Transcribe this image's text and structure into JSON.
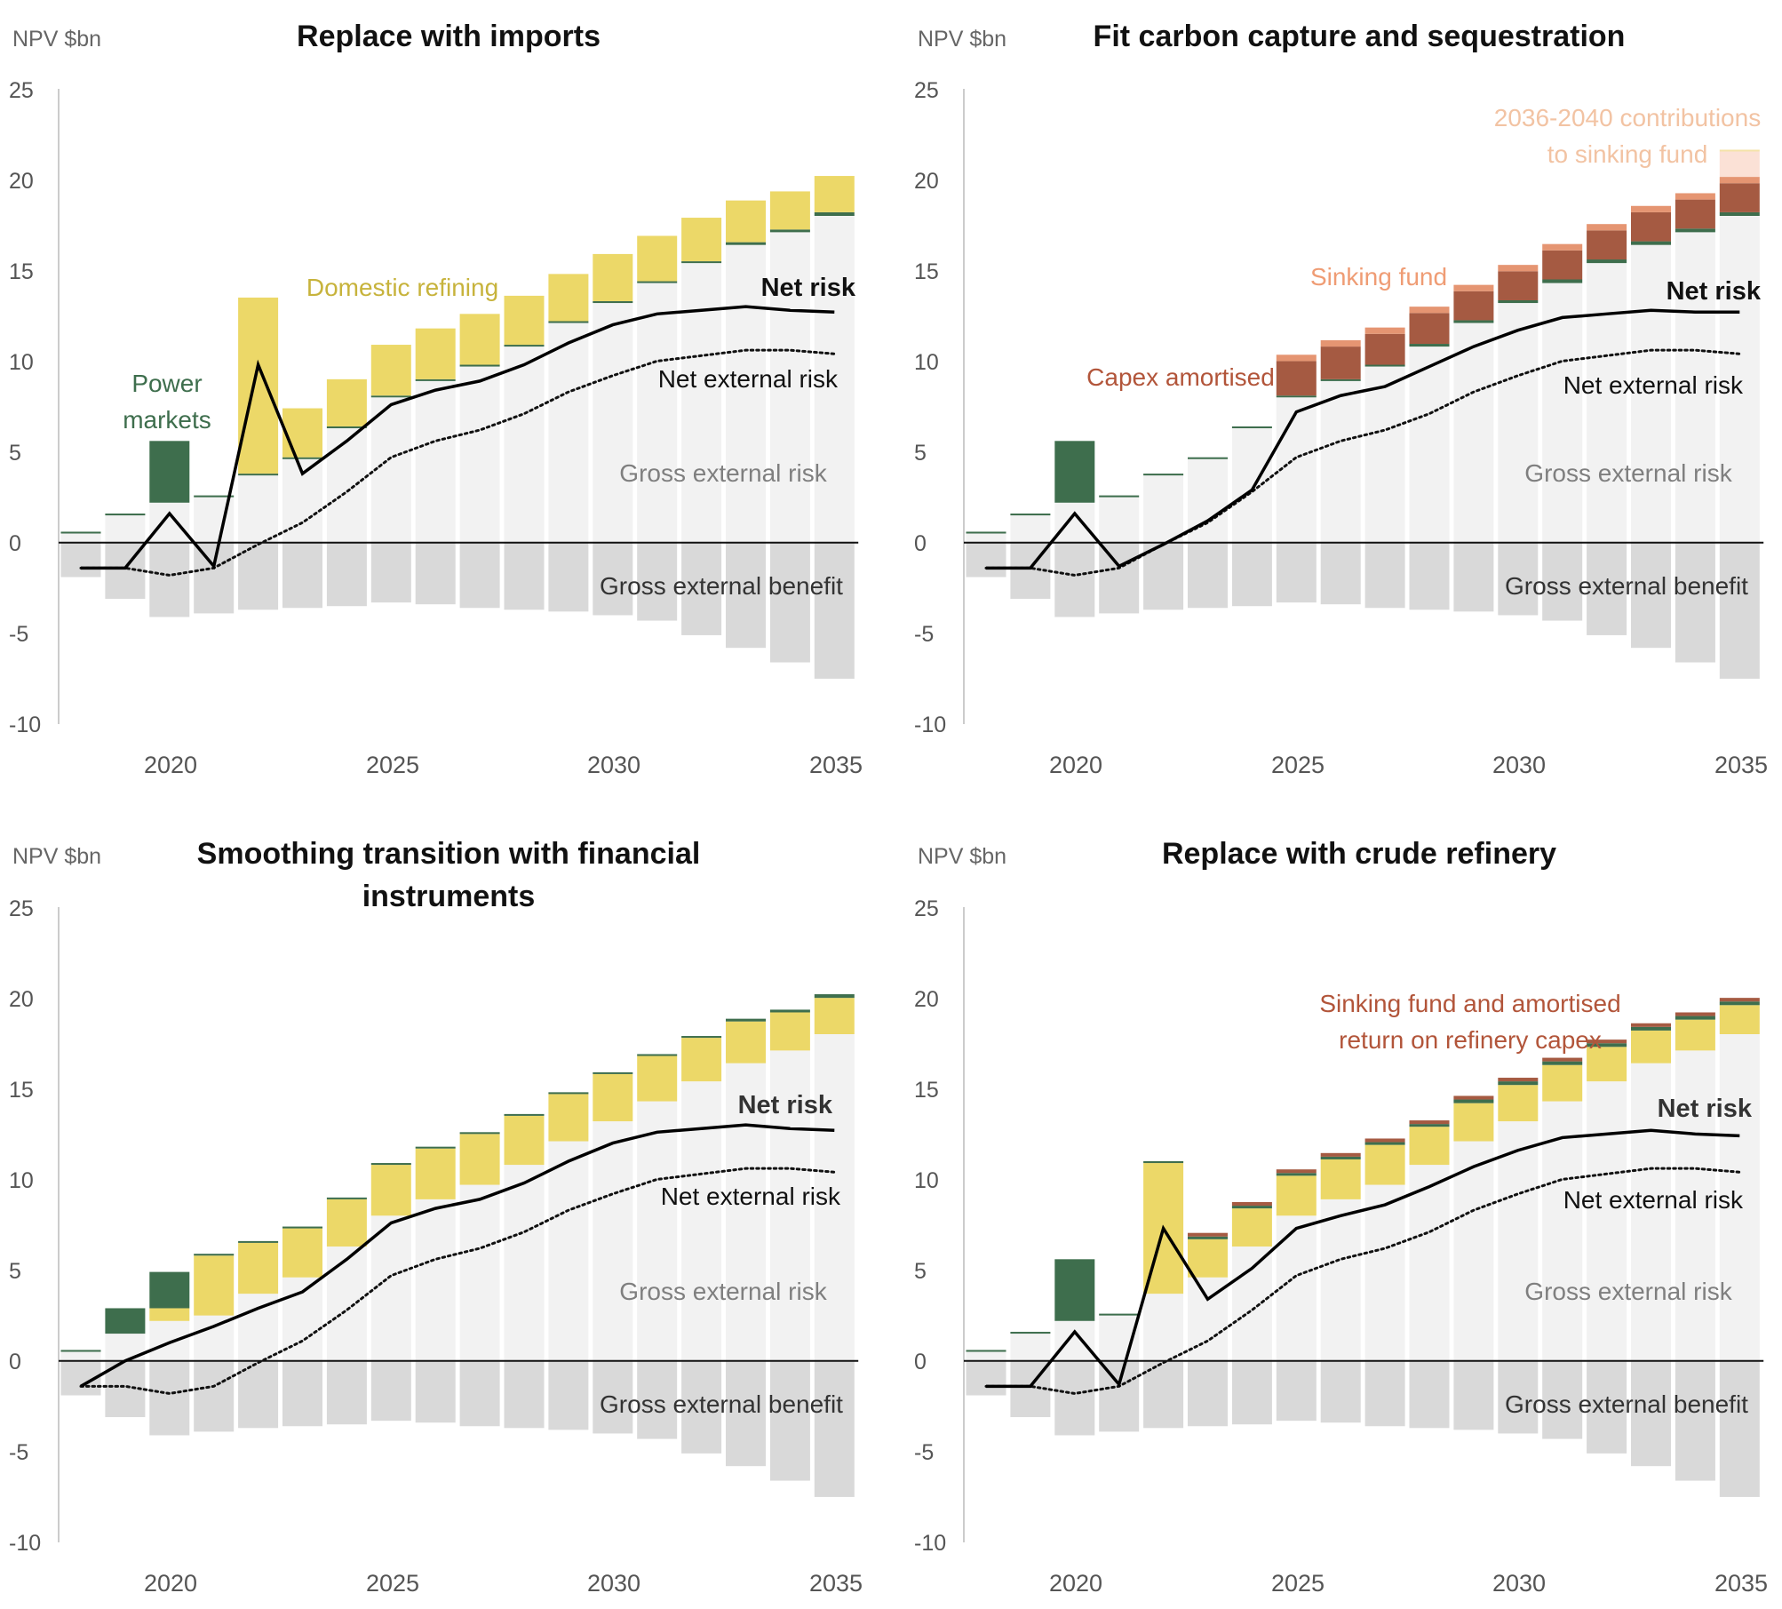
{
  "colors": {
    "gross_risk": "#f2f2f2",
    "gross_benefit": "#d9d9d9",
    "power": "#3e6e4d",
    "domestic": "#ecd868",
    "capex": "#a55a42",
    "sinking": "#e59572",
    "sinking_future": "#fbe1d6",
    "sinking_future_top": "#f4e2a8",
    "net_line": "#000000",
    "label_grey": "#7f7f7f",
    "label_domestic": "#c7b33c",
    "label_power": "#3e6e4d",
    "label_capex": "#b2553a",
    "label_sinking": "#ef9c74",
    "label_future": "#f2c3a3"
  },
  "chart_data": [
    {
      "type": "bar",
      "title": "Replace with imports",
      "ylabel": "NPV $bn",
      "ylim": [
        -10,
        25
      ],
      "yticks": [
        "25",
        "20",
        "15",
        "10",
        "5",
        "0",
        "-5",
        "-10"
      ],
      "xtick_labels": [
        "2020",
        "2025",
        "2030",
        "2035"
      ],
      "x": [
        2018,
        2019,
        2020,
        2021,
        2022,
        2023,
        2024,
        2025,
        2026,
        2027,
        2028,
        2029,
        2030,
        2031,
        2032,
        2033,
        2034,
        2035
      ],
      "gross_external_risk": [
        0.5,
        1.5,
        2.2,
        2.5,
        3.7,
        4.6,
        6.3,
        8.0,
        8.9,
        9.7,
        10.8,
        12.1,
        13.2,
        14.3,
        15.4,
        16.4,
        17.1,
        18.0
      ],
      "gross_external_benefit": [
        -1.9,
        -3.1,
        -4.1,
        -3.9,
        -3.7,
        -3.6,
        -3.5,
        -3.3,
        -3.4,
        -3.6,
        -3.7,
        -3.8,
        -4.0,
        -4.3,
        -5.1,
        -5.8,
        -6.6,
        -7.5
      ],
      "power_markets": [
        0.1,
        0.1,
        3.4,
        0.1,
        0.1,
        0.1,
        0.1,
        0.1,
        0.1,
        0.1,
        0.1,
        0.1,
        0.1,
        0.1,
        0.1,
        0.15,
        0.15,
        0.2
      ],
      "domestic_refining": [
        0,
        0,
        0,
        0,
        9.7,
        2.7,
        2.6,
        2.8,
        2.8,
        2.8,
        2.7,
        2.6,
        2.6,
        2.5,
        2.4,
        2.3,
        2.1,
        2.0
      ],
      "net_risk": [
        -1.4,
        -1.4,
        1.6,
        -1.3,
        9.8,
        3.8,
        5.6,
        7.6,
        8.4,
        8.9,
        9.8,
        11.0,
        12.0,
        12.6,
        12.8,
        13.0,
        12.8,
        12.7
      ],
      "net_external_risk": [
        -1.4,
        -1.4,
        -1.8,
        -1.4,
        -0.1,
        1.1,
        2.8,
        4.7,
        5.6,
        6.2,
        7.1,
        8.3,
        9.2,
        10.0,
        10.3,
        10.6,
        10.6,
        10.4
      ],
      "annotations": {
        "domestic": "Domestic refining",
        "power_1": "Power",
        "power_2": "markets",
        "net_risk": "Net risk",
        "net_external": "Net external risk",
        "gross_risk": "Gross external risk",
        "gross_benefit": "Gross external benefit"
      }
    },
    {
      "type": "bar",
      "title": "Fit carbon capture and sequestration",
      "ylabel": "NPV $bn",
      "ylim": [
        -10,
        25
      ],
      "yticks": [
        "25",
        "20",
        "15",
        "10",
        "5",
        "0",
        "-5",
        "-10"
      ],
      "xtick_labels": [
        "2020",
        "2025",
        "2030",
        "2035"
      ],
      "x": [
        2018,
        2019,
        2020,
        2021,
        2022,
        2023,
        2024,
        2025,
        2026,
        2027,
        2028,
        2029,
        2030,
        2031,
        2032,
        2033,
        2034,
        2035
      ],
      "gross_external_risk": [
        0.5,
        1.5,
        2.2,
        2.5,
        3.7,
        4.6,
        6.3,
        8.0,
        8.9,
        9.7,
        10.8,
        12.1,
        13.2,
        14.3,
        15.4,
        16.4,
        17.1,
        18.0
      ],
      "gross_external_benefit": [
        -1.9,
        -3.1,
        -4.1,
        -3.9,
        -3.7,
        -3.6,
        -3.5,
        -3.3,
        -3.4,
        -3.6,
        -3.7,
        -3.8,
        -4.0,
        -4.3,
        -5.1,
        -5.8,
        -6.6,
        -7.5
      ],
      "power_markets": [
        0.1,
        0.1,
        3.4,
        0.1,
        0.1,
        0.1,
        0.1,
        0.1,
        0.1,
        0.1,
        0.15,
        0.15,
        0.15,
        0.2,
        0.2,
        0.2,
        0.2,
        0.2
      ],
      "capex_amortised": [
        0,
        0,
        0,
        0,
        0,
        0,
        0,
        1.9,
        1.8,
        1.7,
        1.7,
        1.6,
        1.6,
        1.6,
        1.6,
        1.6,
        1.6,
        1.6
      ],
      "sinking_fund": [
        0,
        0,
        0,
        0,
        0,
        0,
        0,
        0.35,
        0.35,
        0.35,
        0.35,
        0.35,
        0.35,
        0.35,
        0.35,
        0.35,
        0.35,
        0.35
      ],
      "sinking_fund_2036_2040": [
        0,
        0,
        0,
        0,
        0,
        0,
        0,
        0,
        0,
        0,
        0,
        0,
        0,
        0,
        0,
        0,
        0,
        1.4
      ],
      "net_risk": [
        -1.4,
        -1.4,
        1.6,
        -1.3,
        -0.1,
        1.2,
        2.9,
        7.2,
        8.1,
        8.6,
        9.7,
        10.8,
        11.7,
        12.4,
        12.6,
        12.8,
        12.7,
        12.7
      ],
      "net_external_risk": [
        -1.4,
        -1.4,
        -1.8,
        -1.4,
        -0.1,
        1.1,
        2.8,
        4.7,
        5.6,
        6.2,
        7.1,
        8.3,
        9.2,
        10.0,
        10.3,
        10.6,
        10.6,
        10.4
      ],
      "annotations": {
        "future_1": "2036-2040 contributions",
        "future_2": "to sinking fund",
        "sinking": "Sinking fund",
        "capex": "Capex amortised",
        "net_risk": "Net risk",
        "net_external": "Net external risk",
        "gross_risk": "Gross external risk",
        "gross_benefit": "Gross external benefit"
      }
    },
    {
      "type": "bar",
      "title_1": "Smoothing transition with financial",
      "title_2": "instruments",
      "ylabel": "NPV $bn",
      "ylim": [
        -10,
        25
      ],
      "yticks": [
        "25",
        "20",
        "15",
        "10",
        "5",
        "0",
        "-5",
        "-10"
      ],
      "xtick_labels": [
        "2020",
        "2025",
        "2030",
        "2035"
      ],
      "x": [
        2018,
        2019,
        2020,
        2021,
        2022,
        2023,
        2024,
        2025,
        2026,
        2027,
        2028,
        2029,
        2030,
        2031,
        2032,
        2033,
        2034,
        2035
      ],
      "gross_external_risk": [
        0.5,
        1.5,
        2.2,
        2.5,
        3.7,
        4.6,
        6.3,
        8.0,
        8.9,
        9.7,
        10.8,
        12.1,
        13.2,
        14.3,
        15.4,
        16.4,
        17.1,
        18.0
      ],
      "gross_external_benefit": [
        -1.9,
        -3.1,
        -4.1,
        -3.9,
        -3.7,
        -3.6,
        -3.5,
        -3.3,
        -3.4,
        -3.6,
        -3.7,
        -3.8,
        -4.0,
        -4.3,
        -5.1,
        -5.8,
        -6.6,
        -7.5
      ],
      "domestic_refining": [
        0,
        0,
        0.7,
        3.3,
        2.8,
        2.7,
        2.6,
        2.8,
        2.8,
        2.8,
        2.7,
        2.6,
        2.6,
        2.5,
        2.4,
        2.3,
        2.1,
        2.0
      ],
      "power_markets": [
        0.1,
        1.4,
        2.0,
        0.1,
        0.1,
        0.1,
        0.1,
        0.1,
        0.1,
        0.1,
        0.1,
        0.1,
        0.1,
        0.1,
        0.1,
        0.15,
        0.15,
        0.2
      ],
      "net_risk": [
        -1.4,
        0.0,
        1.0,
        1.9,
        2.9,
        3.8,
        5.6,
        7.6,
        8.4,
        8.9,
        9.8,
        11.0,
        12.0,
        12.6,
        12.8,
        13.0,
        12.8,
        12.7
      ],
      "net_external_risk": [
        -1.4,
        -1.4,
        -1.8,
        -1.4,
        -0.1,
        1.1,
        2.8,
        4.7,
        5.6,
        6.2,
        7.1,
        8.3,
        9.2,
        10.0,
        10.3,
        10.6,
        10.6,
        10.4
      ],
      "annotations": {
        "net_risk": "Net risk",
        "net_external": "Net external risk",
        "gross_risk": "Gross external risk",
        "gross_benefit": "Gross external benefit"
      }
    },
    {
      "type": "bar",
      "title": "Replace with crude refinery",
      "ylabel": "NPV $bn",
      "ylim": [
        -10,
        25
      ],
      "yticks": [
        "25",
        "20",
        "15",
        "10",
        "5",
        "0",
        "-5",
        "-10"
      ],
      "xtick_labels": [
        "2020",
        "2025",
        "2030",
        "2035"
      ],
      "x": [
        2018,
        2019,
        2020,
        2021,
        2022,
        2023,
        2024,
        2025,
        2026,
        2027,
        2028,
        2029,
        2030,
        2031,
        2032,
        2033,
        2034,
        2035
      ],
      "gross_external_risk": [
        0.5,
        1.5,
        2.2,
        2.5,
        3.7,
        4.6,
        6.3,
        8.0,
        8.9,
        9.7,
        10.8,
        12.1,
        13.2,
        14.3,
        15.4,
        16.4,
        17.1,
        18.0
      ],
      "gross_external_benefit": [
        -1.9,
        -3.1,
        -4.1,
        -3.9,
        -3.7,
        -3.6,
        -3.5,
        -3.3,
        -3.4,
        -3.6,
        -3.7,
        -3.8,
        -4.0,
        -4.3,
        -5.1,
        -5.8,
        -6.6,
        -7.5
      ],
      "domestic_refining": [
        0,
        0,
        0,
        0,
        7.2,
        2.1,
        2.1,
        2.2,
        2.2,
        2.2,
        2.1,
        2.1,
        2.0,
        2.0,
        1.9,
        1.8,
        1.7,
        1.6
      ],
      "power_markets": [
        0.1,
        0.1,
        3.4,
        0.1,
        0.1,
        0.15,
        0.15,
        0.15,
        0.15,
        0.15,
        0.15,
        0.2,
        0.2,
        0.2,
        0.2,
        0.2,
        0.2,
        0.2
      ],
      "sinking_and_capex": [
        0,
        0,
        0,
        0,
        0,
        0.2,
        0.2,
        0.2,
        0.2,
        0.2,
        0.2,
        0.2,
        0.2,
        0.2,
        0.2,
        0.2,
        0.2,
        0.2
      ],
      "net_risk": [
        -1.4,
        -1.4,
        1.6,
        -1.3,
        7.3,
        3.4,
        5.1,
        7.3,
        8.0,
        8.6,
        9.6,
        10.7,
        11.6,
        12.3,
        12.5,
        12.7,
        12.5,
        12.4
      ],
      "net_external_risk": [
        -1.4,
        -1.4,
        -1.8,
        -1.4,
        -0.1,
        1.1,
        2.8,
        4.7,
        5.6,
        6.2,
        7.1,
        8.3,
        9.2,
        10.0,
        10.3,
        10.6,
        10.6,
        10.4
      ],
      "annotations": {
        "sinking_1": "Sinking fund and amortised",
        "sinking_2": "return on refinery capex",
        "net_risk": "Net risk",
        "net_external": "Net external risk",
        "gross_risk": "Gross external risk",
        "gross_benefit": "Gross external benefit"
      }
    }
  ]
}
